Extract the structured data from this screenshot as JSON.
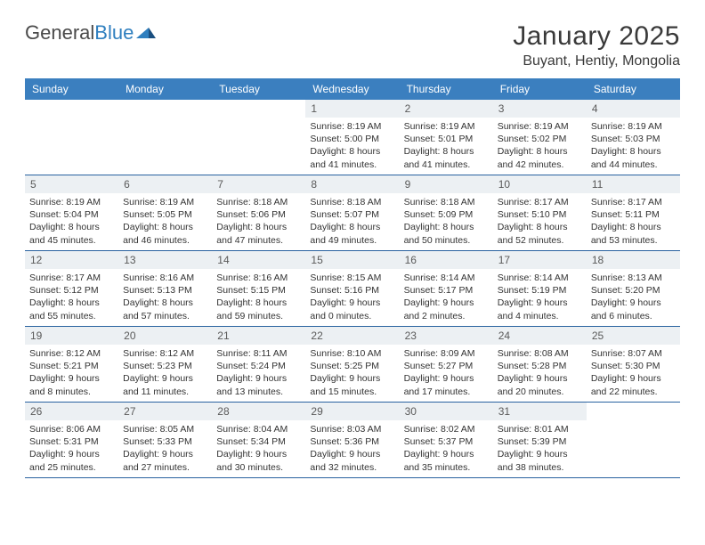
{
  "brand": {
    "part1": "General",
    "part2": "Blue"
  },
  "title": "January 2025",
  "location": "Buyant, Hentiy, Mongolia",
  "header_bg": "#3b7fbf",
  "row_border": "#2962a0",
  "daynum_bg": "#ecf0f3",
  "weekdays": [
    "Sunday",
    "Monday",
    "Tuesday",
    "Wednesday",
    "Thursday",
    "Friday",
    "Saturday"
  ],
  "weeks": [
    [
      {
        "n": "",
        "sr": "",
        "ss": "",
        "dl1": "",
        "dl2": ""
      },
      {
        "n": "",
        "sr": "",
        "ss": "",
        "dl1": "",
        "dl2": ""
      },
      {
        "n": "",
        "sr": "",
        "ss": "",
        "dl1": "",
        "dl2": ""
      },
      {
        "n": "1",
        "sr": "Sunrise: 8:19 AM",
        "ss": "Sunset: 5:00 PM",
        "dl1": "Daylight: 8 hours",
        "dl2": "and 41 minutes."
      },
      {
        "n": "2",
        "sr": "Sunrise: 8:19 AM",
        "ss": "Sunset: 5:01 PM",
        "dl1": "Daylight: 8 hours",
        "dl2": "and 41 minutes."
      },
      {
        "n": "3",
        "sr": "Sunrise: 8:19 AM",
        "ss": "Sunset: 5:02 PM",
        "dl1": "Daylight: 8 hours",
        "dl2": "and 42 minutes."
      },
      {
        "n": "4",
        "sr": "Sunrise: 8:19 AM",
        "ss": "Sunset: 5:03 PM",
        "dl1": "Daylight: 8 hours",
        "dl2": "and 44 minutes."
      }
    ],
    [
      {
        "n": "5",
        "sr": "Sunrise: 8:19 AM",
        "ss": "Sunset: 5:04 PM",
        "dl1": "Daylight: 8 hours",
        "dl2": "and 45 minutes."
      },
      {
        "n": "6",
        "sr": "Sunrise: 8:19 AM",
        "ss": "Sunset: 5:05 PM",
        "dl1": "Daylight: 8 hours",
        "dl2": "and 46 minutes."
      },
      {
        "n": "7",
        "sr": "Sunrise: 8:18 AM",
        "ss": "Sunset: 5:06 PM",
        "dl1": "Daylight: 8 hours",
        "dl2": "and 47 minutes."
      },
      {
        "n": "8",
        "sr": "Sunrise: 8:18 AM",
        "ss": "Sunset: 5:07 PM",
        "dl1": "Daylight: 8 hours",
        "dl2": "and 49 minutes."
      },
      {
        "n": "9",
        "sr": "Sunrise: 8:18 AM",
        "ss": "Sunset: 5:09 PM",
        "dl1": "Daylight: 8 hours",
        "dl2": "and 50 minutes."
      },
      {
        "n": "10",
        "sr": "Sunrise: 8:17 AM",
        "ss": "Sunset: 5:10 PM",
        "dl1": "Daylight: 8 hours",
        "dl2": "and 52 minutes."
      },
      {
        "n": "11",
        "sr": "Sunrise: 8:17 AM",
        "ss": "Sunset: 5:11 PM",
        "dl1": "Daylight: 8 hours",
        "dl2": "and 53 minutes."
      }
    ],
    [
      {
        "n": "12",
        "sr": "Sunrise: 8:17 AM",
        "ss": "Sunset: 5:12 PM",
        "dl1": "Daylight: 8 hours",
        "dl2": "and 55 minutes."
      },
      {
        "n": "13",
        "sr": "Sunrise: 8:16 AM",
        "ss": "Sunset: 5:13 PM",
        "dl1": "Daylight: 8 hours",
        "dl2": "and 57 minutes."
      },
      {
        "n": "14",
        "sr": "Sunrise: 8:16 AM",
        "ss": "Sunset: 5:15 PM",
        "dl1": "Daylight: 8 hours",
        "dl2": "and 59 minutes."
      },
      {
        "n": "15",
        "sr": "Sunrise: 8:15 AM",
        "ss": "Sunset: 5:16 PM",
        "dl1": "Daylight: 9 hours",
        "dl2": "and 0 minutes."
      },
      {
        "n": "16",
        "sr": "Sunrise: 8:14 AM",
        "ss": "Sunset: 5:17 PM",
        "dl1": "Daylight: 9 hours",
        "dl2": "and 2 minutes."
      },
      {
        "n": "17",
        "sr": "Sunrise: 8:14 AM",
        "ss": "Sunset: 5:19 PM",
        "dl1": "Daylight: 9 hours",
        "dl2": "and 4 minutes."
      },
      {
        "n": "18",
        "sr": "Sunrise: 8:13 AM",
        "ss": "Sunset: 5:20 PM",
        "dl1": "Daylight: 9 hours",
        "dl2": "and 6 minutes."
      }
    ],
    [
      {
        "n": "19",
        "sr": "Sunrise: 8:12 AM",
        "ss": "Sunset: 5:21 PM",
        "dl1": "Daylight: 9 hours",
        "dl2": "and 8 minutes."
      },
      {
        "n": "20",
        "sr": "Sunrise: 8:12 AM",
        "ss": "Sunset: 5:23 PM",
        "dl1": "Daylight: 9 hours",
        "dl2": "and 11 minutes."
      },
      {
        "n": "21",
        "sr": "Sunrise: 8:11 AM",
        "ss": "Sunset: 5:24 PM",
        "dl1": "Daylight: 9 hours",
        "dl2": "and 13 minutes."
      },
      {
        "n": "22",
        "sr": "Sunrise: 8:10 AM",
        "ss": "Sunset: 5:25 PM",
        "dl1": "Daylight: 9 hours",
        "dl2": "and 15 minutes."
      },
      {
        "n": "23",
        "sr": "Sunrise: 8:09 AM",
        "ss": "Sunset: 5:27 PM",
        "dl1": "Daylight: 9 hours",
        "dl2": "and 17 minutes."
      },
      {
        "n": "24",
        "sr": "Sunrise: 8:08 AM",
        "ss": "Sunset: 5:28 PM",
        "dl1": "Daylight: 9 hours",
        "dl2": "and 20 minutes."
      },
      {
        "n": "25",
        "sr": "Sunrise: 8:07 AM",
        "ss": "Sunset: 5:30 PM",
        "dl1": "Daylight: 9 hours",
        "dl2": "and 22 minutes."
      }
    ],
    [
      {
        "n": "26",
        "sr": "Sunrise: 8:06 AM",
        "ss": "Sunset: 5:31 PM",
        "dl1": "Daylight: 9 hours",
        "dl2": "and 25 minutes."
      },
      {
        "n": "27",
        "sr": "Sunrise: 8:05 AM",
        "ss": "Sunset: 5:33 PM",
        "dl1": "Daylight: 9 hours",
        "dl2": "and 27 minutes."
      },
      {
        "n": "28",
        "sr": "Sunrise: 8:04 AM",
        "ss": "Sunset: 5:34 PM",
        "dl1": "Daylight: 9 hours",
        "dl2": "and 30 minutes."
      },
      {
        "n": "29",
        "sr": "Sunrise: 8:03 AM",
        "ss": "Sunset: 5:36 PM",
        "dl1": "Daylight: 9 hours",
        "dl2": "and 32 minutes."
      },
      {
        "n": "30",
        "sr": "Sunrise: 8:02 AM",
        "ss": "Sunset: 5:37 PM",
        "dl1": "Daylight: 9 hours",
        "dl2": "and 35 minutes."
      },
      {
        "n": "31",
        "sr": "Sunrise: 8:01 AM",
        "ss": "Sunset: 5:39 PM",
        "dl1": "Daylight: 9 hours",
        "dl2": "and 38 minutes."
      },
      {
        "n": "",
        "sr": "",
        "ss": "",
        "dl1": "",
        "dl2": ""
      }
    ]
  ]
}
